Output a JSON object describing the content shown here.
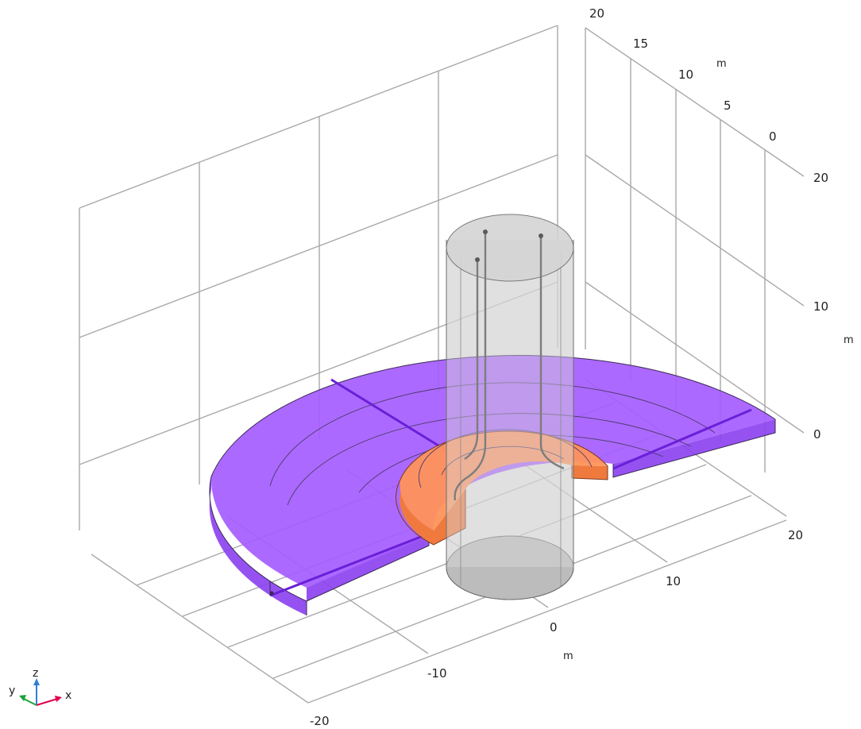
{
  "colors": {
    "background": "#ffffff",
    "grid": "#a9a9a9",
    "outer_ring": "#a55cff",
    "outer_ring_side": "#8a3ff0",
    "inner_ring": "#ff935a",
    "inner_ring_side": "#f07a3e",
    "cylinder": "#c8c8c8",
    "axis_x": "#e0004d",
    "axis_y": "#1aa33a",
    "axis_z": "#2f7fd8"
  },
  "axes": {
    "x": {
      "unit": "m",
      "ticks": [
        "-20",
        "-10",
        "0",
        "10",
        "20"
      ]
    },
    "y": {
      "unit": "m",
      "ticks": [
        "20",
        "15",
        "10",
        "5",
        "0"
      ]
    },
    "z": {
      "unit": "m",
      "ticks": [
        "20",
        "10",
        "0"
      ]
    }
  },
  "triad": {
    "x": "x",
    "y": "y",
    "z": "z"
  },
  "objects": [
    {
      "name": "outer-ring",
      "color": "outer_ring"
    },
    {
      "name": "inner-ring",
      "color": "inner_ring"
    },
    {
      "name": "cylinder",
      "color": "cylinder"
    },
    {
      "name": "pipes",
      "color": "cylinder"
    }
  ]
}
